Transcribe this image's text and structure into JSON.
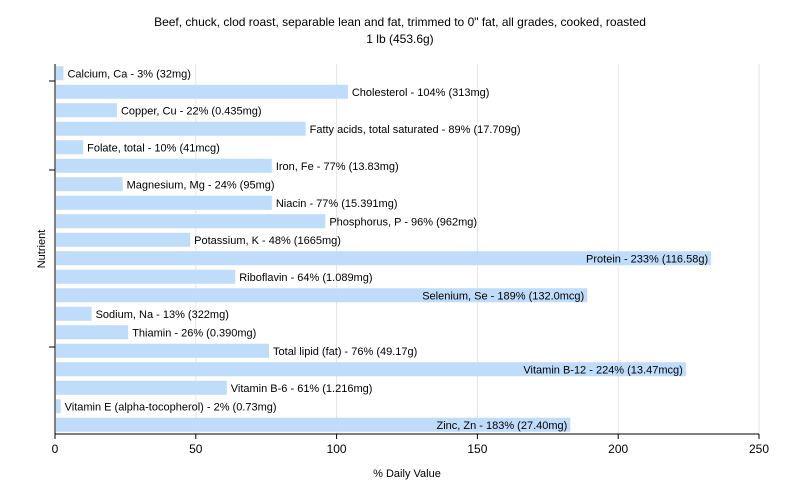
{
  "chart_data": {
    "type": "bar",
    "orientation": "horizontal",
    "title": "Beef, chuck, clod roast, separable lean and fat, trimmed to 0\" fat, all grades, cooked, roasted",
    "subtitle": "1 lb (453.6g)",
    "xlabel": "% Daily Value",
    "ylabel": "Nutrient",
    "xlim": [
      0,
      250
    ],
    "xticks": [
      0,
      50,
      100,
      150,
      200,
      250
    ],
    "grid": "vertical",
    "bar_color": "#bfdcfa",
    "categories": [
      "Calcium, Ca",
      "Cholesterol",
      "Copper, Cu",
      "Fatty acids, total saturated",
      "Folate, total",
      "Iron, Fe",
      "Magnesium, Mg",
      "Niacin",
      "Phosphorus, P",
      "Potassium, K",
      "Protein",
      "Riboflavin",
      "Selenium, Se",
      "Sodium, Na",
      "Thiamin",
      "Total lipid (fat)",
      "Vitamin B-12",
      "Vitamin B-6",
      "Vitamin E (alpha-tocopherol)",
      "Zinc, Zn"
    ],
    "values": [
      3,
      104,
      22,
      89,
      10,
      77,
      24,
      77,
      96,
      48,
      233,
      64,
      189,
      13,
      26,
      76,
      224,
      61,
      2,
      183
    ],
    "labels": [
      "Calcium, Ca - 3% (32mg)",
      "Cholesterol - 104% (313mg)",
      "Copper, Cu - 22% (0.435mg)",
      "Fatty acids, total saturated - 89% (17.709g)",
      "Folate, total - 10% (41mcg)",
      "Iron, Fe - 77% (13.83mg)",
      "Magnesium, Mg - 24% (95mg)",
      "Niacin - 77% (15.391mg)",
      "Phosphorus, P - 96% (962mg)",
      "Potassium, K - 48% (1665mg)",
      "Protein - 233% (116.58g)",
      "Riboflavin - 64% (1.089mg)",
      "Selenium, Se - 189% (132.0mcg)",
      "Sodium, Na - 13% (322mg)",
      "Thiamin - 26% (0.390mg)",
      "Total lipid (fat) - 76% (49.17g)",
      "Vitamin B-12 - 224% (13.47mcg)",
      "Vitamin B-6 - 61% (1.216mg)",
      "Vitamin E (alpha-tocopherol) - 2% (0.73mg)",
      "Zinc, Zn - 183% (27.40mg)"
    ]
  }
}
